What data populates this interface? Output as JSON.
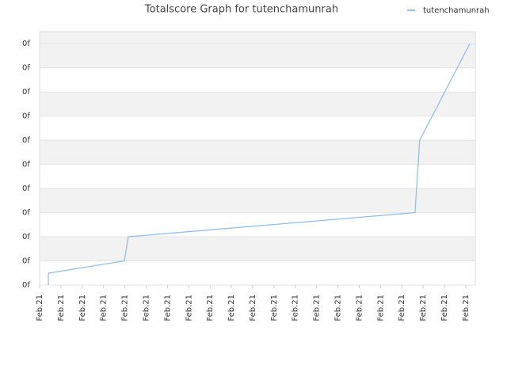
{
  "chart_data": {
    "type": "line",
    "title": "Totalscore Graph for tutenchamunrah",
    "series": [
      {
        "name": "tutenchamunrah",
        "color": "#90c0ec",
        "x": [
          0.41,
          0.41,
          3.98,
          4.16,
          17.62,
          17.84,
          20.19
        ],
        "values": [
          0,
          0.49,
          1,
          2,
          3,
          6,
          10
        ]
      }
    ],
    "xlim": [
      0,
      20.45
    ],
    "xticks": [
      {
        "value": 0,
        "label": "Feb.21"
      },
      {
        "value": 1,
        "label": "Feb.21"
      },
      {
        "value": 2,
        "label": "Feb.21"
      },
      {
        "value": 3,
        "label": "Feb.21"
      },
      {
        "value": 4,
        "label": "Feb.21"
      },
      {
        "value": 5,
        "label": "Feb.21"
      },
      {
        "value": 6,
        "label": "Feb.21"
      },
      {
        "value": 7,
        "label": "Feb.21"
      },
      {
        "value": 8,
        "label": "Feb.21"
      },
      {
        "value": 9,
        "label": "Feb.21"
      },
      {
        "value": 10,
        "label": "Feb.21"
      },
      {
        "value": 11,
        "label": "Feb.21"
      },
      {
        "value": 12,
        "label": "Feb.21"
      },
      {
        "value": 13,
        "label": "Feb.21"
      },
      {
        "value": 14,
        "label": "Feb.21"
      },
      {
        "value": 15,
        "label": "Feb.21"
      },
      {
        "value": 16,
        "label": "Feb.21"
      },
      {
        "value": 17,
        "label": "Feb.21"
      },
      {
        "value": 18,
        "label": "Feb.21"
      },
      {
        "value": 19,
        "label": "Feb.21"
      },
      {
        "value": 20,
        "label": "Feb.21"
      }
    ],
    "ylim": [
      0,
      10.5
    ],
    "yticks": [
      {
        "value": 0,
        "label": "0f"
      },
      {
        "value": 1,
        "label": "0f"
      },
      {
        "value": 2,
        "label": "0f"
      },
      {
        "value": 3,
        "label": "0f"
      },
      {
        "value": 4,
        "label": "0f"
      },
      {
        "value": 5,
        "label": "0f"
      },
      {
        "value": 6,
        "label": "0f"
      },
      {
        "value": 7,
        "label": "0f"
      },
      {
        "value": 8,
        "label": "0f"
      },
      {
        "value": 9,
        "label": "0f"
      },
      {
        "value": 10,
        "label": "0f"
      }
    ],
    "grid": true,
    "legend": "top-right"
  }
}
